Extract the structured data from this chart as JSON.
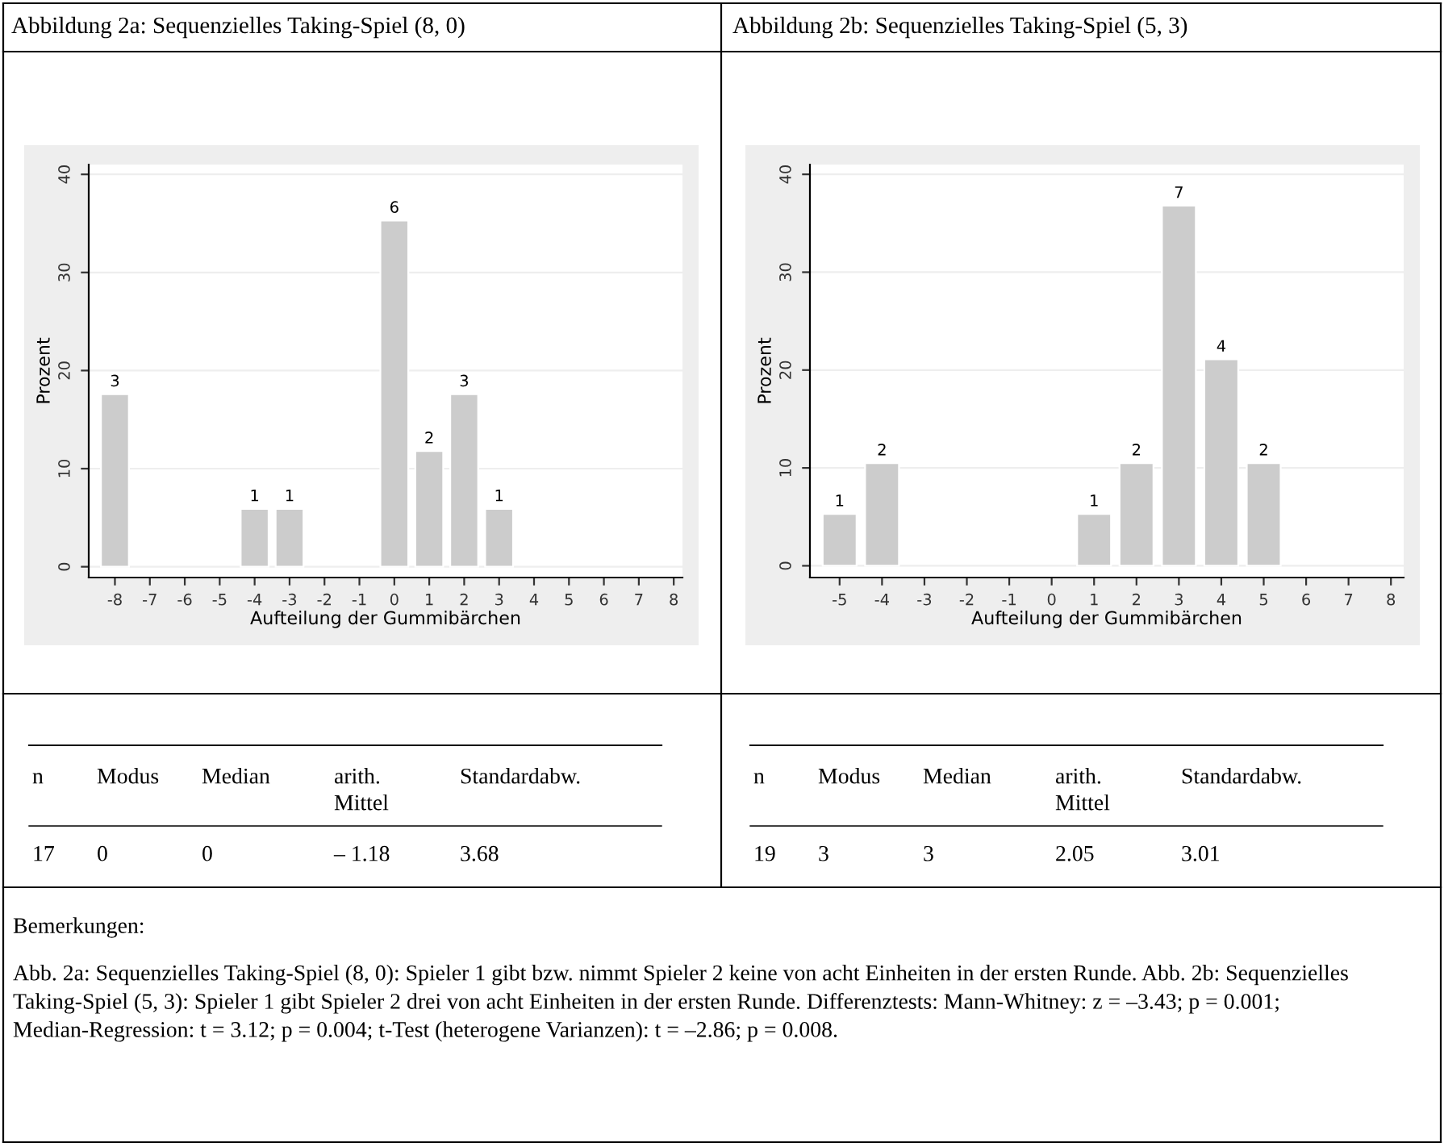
{
  "chart_data": [
    {
      "type": "bar",
      "title": "Abbildung 2a: Sequenzielles Taking-Spiel (8, 0)",
      "xlabel": "Aufteilung der Gummibärchen",
      "ylabel": "Prozent",
      "x": [
        -8,
        -4,
        -3,
        0,
        1,
        2,
        3
      ],
      "values": [
        17.6,
        5.9,
        5.9,
        35.3,
        11.8,
        17.6,
        5.9
      ],
      "color": "#cccccc",
      "xlim": [
        -8.75,
        8.25
      ],
      "xticks": [
        -8,
        -7,
        -6,
        -5,
        -4,
        -3,
        -2,
        -1,
        0,
        1,
        2,
        3,
        4,
        5,
        6,
        7,
        8
      ],
      "ylim": [
        -1.1,
        41
      ],
      "yticks": [
        0,
        10,
        20,
        30,
        40
      ],
      "grid": "y",
      "annotations": [
        {
          "text": "3",
          "x": -8,
          "y": 17.6
        },
        {
          "text": "1",
          "x": -4,
          "y": 5.9
        },
        {
          "text": "1",
          "x": -3,
          "y": 5.9
        },
        {
          "text": "6",
          "x": 0,
          "y": 35.3
        },
        {
          "text": "2",
          "x": 1,
          "y": 11.8
        },
        {
          "text": "3",
          "x": 2,
          "y": 17.6
        },
        {
          "text": "1",
          "x": 3,
          "y": 5.9
        },
        "n",
        "Modus",
        "Median",
        "arith.\nMittel",
        "Standardabw.",
        "17",
        "0",
        "0",
        "– 1.18",
        "3.68",
        "Bemerkungen:",
        "Abb. 2a: Sequenzielles Taking-Spiel (8, 0): Spieler 1 gibt bzw. nimmt Spieler 2 keine von acht Einheiten in der ersten Runde. Abb. 2b: Sequenzielles Taking-Spiel (5, 3): Spieler 1 gibt Spieler 2 drei von acht Einheiten in der ersten Runde. Differenztests: Mann-Whitney: z = –3.43; p = 0.001; Median-Regression: t = 3.12; p = 0.004; t-Test (heterogene Varianzen): t = –2.86; p = 0.008."
      ]
    },
    {
      "type": "bar",
      "title": "Abbildung 2b: Sequenzielles Taking-Spiel (5, 3)",
      "xlabel": "Aufteilung der Gummibärchen",
      "ylabel": "Prozent",
      "x": [
        -5,
        -4,
        1,
        2,
        3,
        4,
        5
      ],
      "values": [
        5.3,
        10.5,
        5.3,
        10.5,
        36.8,
        21.1,
        10.5
      ],
      "color": "#cccccc",
      "xlim": [
        -5.7,
        8.3
      ],
      "xticks": [
        -5,
        -4,
        -3,
        -2,
        -1,
        0,
        1,
        2,
        3,
        4,
        5,
        6,
        7,
        8
      ],
      "ylim": [
        -1.2,
        41
      ],
      "yticks": [
        0,
        10,
        20,
        30,
        40
      ],
      "grid": "y",
      "annotations": [
        {
          "text": "1",
          "x": -5,
          "y": 5.3
        },
        {
          "text": "2",
          "x": -4,
          "y": 10.5
        },
        {
          "text": "1",
          "x": 1,
          "y": 5.3
        },
        {
          "text": "2",
          "x": 2,
          "y": 10.5
        },
        {
          "text": "7",
          "x": 3,
          "y": 36.8
        },
        {
          "text": "4",
          "x": 4,
          "y": 21.1
        },
        {
          "text": "2",
          "x": 5,
          "y": 10.5
        },
        "n",
        "Modus",
        "Median",
        "arith.\nMittel",
        "Standardabw.",
        "19",
        "3",
        "3",
        "2.05",
        "3.01"
      ]
    }
  ]
}
